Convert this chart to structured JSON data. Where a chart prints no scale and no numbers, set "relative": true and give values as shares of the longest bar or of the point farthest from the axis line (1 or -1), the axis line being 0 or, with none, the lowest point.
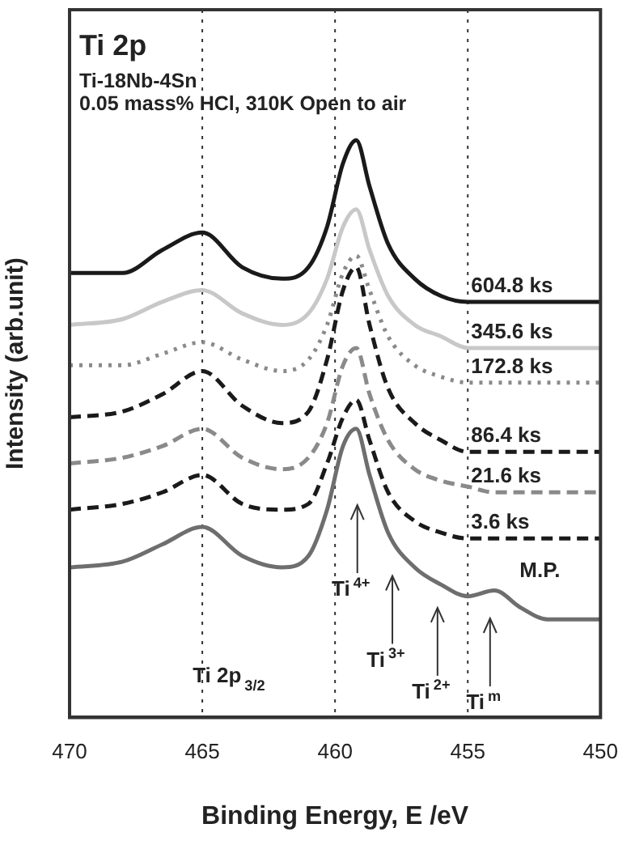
{
  "chart_data": {
    "type": "line",
    "relative": true,
    "title": "Ti 2p",
    "subtitle": "Ti-18Nb-4Sn\n0.05 mass% HCl, 310K Open to air",
    "xlabel": "Binding Energy, E /eV",
    "ylabel": "Intensity (arb.unit)",
    "x": [
      470,
      468,
      466.5,
      465,
      463.5,
      462,
      461,
      460.3,
      459.7,
      459.2,
      458.7,
      458,
      457,
      456,
      455,
      454,
      453,
      452,
      450
    ],
    "xlim": [
      470,
      450
    ],
    "xticks": [
      470,
      465,
      460,
      455,
      450
    ],
    "grid": false,
    "legend": false,
    "marker": "none",
    "series": [
      {
        "name": "604.8 ks",
        "color": "#1a1a1a",
        "line_style": "solid",
        "values": [
          0.77,
          0.77,
          0.81,
          0.84,
          0.78,
          0.76,
          0.78,
          0.85,
          0.96,
          1,
          0.92,
          0.82,
          0.76,
          0.73,
          0.72,
          0.72,
          0.72,
          0.72,
          0.72
        ]
      },
      {
        "name": "345.6 ks",
        "color": "#c8c8c8",
        "line_style": "solid",
        "values": [
          0.68,
          0.69,
          0.72,
          0.74,
          0.7,
          0.68,
          0.7,
          0.76,
          0.85,
          0.88,
          0.81,
          0.73,
          0.68,
          0.66,
          0.64,
          0.64,
          0.64,
          0.64,
          0.64
        ]
      },
      {
        "name": "172.8 ks",
        "color": "#8a8a8a",
        "line_style": "dotted",
        "values": [
          0.61,
          0.61,
          0.63,
          0.65,
          0.62,
          0.6,
          0.62,
          0.68,
          0.77,
          0.8,
          0.74,
          0.66,
          0.61,
          0.59,
          0.58,
          0.58,
          0.58,
          0.58,
          0.58
        ]
      },
      {
        "name": "86.4 ks",
        "color": "#1a1a1a",
        "line_style": "dashed",
        "values": [
          0.52,
          0.53,
          0.56,
          0.6,
          0.54,
          0.51,
          0.53,
          0.62,
          0.74,
          0.78,
          0.68,
          0.57,
          0.51,
          0.48,
          0.46,
          0.46,
          0.46,
          0.46,
          0.46
        ]
      },
      {
        "name": "21.6 ks",
        "color": "#8a8a8a",
        "line_style": "dashed",
        "values": [
          0.44,
          0.45,
          0.47,
          0.5,
          0.45,
          0.43,
          0.45,
          0.51,
          0.61,
          0.64,
          0.56,
          0.48,
          0.43,
          0.41,
          0.4,
          0.39,
          0.39,
          0.39,
          0.39
        ]
      },
      {
        "name": "3.6 ks",
        "color": "#1a1a1a",
        "line_style": "dashed",
        "values": [
          0.36,
          0.37,
          0.39,
          0.42,
          0.37,
          0.36,
          0.37,
          0.44,
          0.52,
          0.55,
          0.48,
          0.39,
          0.34,
          0.32,
          0.31,
          0.31,
          0.31,
          0.31,
          0.31
        ]
      },
      {
        "name": "M.P.",
        "color": "#6e6e6e",
        "line_style": "solid",
        "values": [
          0.26,
          0.27,
          0.3,
          0.33,
          0.28,
          0.26,
          0.28,
          0.36,
          0.47,
          0.5,
          0.42,
          0.32,
          0.26,
          0.23,
          0.21,
          0.22,
          0.19,
          0.17,
          0.17
        ]
      }
    ],
    "ref_lines": [
      {
        "axis": "x",
        "value": 465,
        "line_style": "dotted",
        "color": "#333333"
      },
      {
        "axis": "x",
        "value": 460,
        "line_style": "dotted",
        "color": "#333333"
      },
      {
        "axis": "x",
        "value": 455,
        "line_style": "dotted",
        "color": "#333333"
      }
    ],
    "annotations": [
      "Ti$^{4+}$",
      "Ti$^{3+}$",
      "Ti$^{2+}$",
      "Ti$^{m}$",
      "Ti 2p$_{3/2}$"
    ]
  }
}
